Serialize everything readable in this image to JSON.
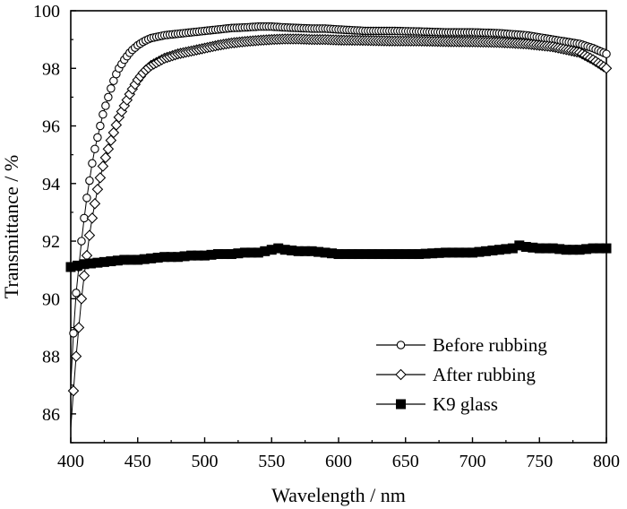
{
  "chart_data": {
    "type": "line",
    "title": "",
    "xlabel": "Wavelength / nm",
    "ylabel": "Transmittance / %",
    "xlim": [
      400,
      800
    ],
    "ylim": [
      85,
      100
    ],
    "xticks": [
      "400",
      "450",
      "500",
      "550",
      "600",
      "650",
      "700",
      "750",
      "800"
    ],
    "yticks": [
      "86",
      "88",
      "90",
      "92",
      "94",
      "96",
      "98",
      "100"
    ],
    "grid": false,
    "legend_position": "bottom-right",
    "series": [
      {
        "name": "Before rubbing",
        "marker": "circle",
        "x": [
          400,
          402,
          404,
          406,
          408,
          410,
          412,
          414,
          416,
          418,
          420,
          422,
          424,
          426,
          428,
          430,
          433,
          436,
          440,
          445,
          450,
          455,
          460,
          470,
          480,
          490,
          500,
          510,
          520,
          530,
          540,
          550,
          560,
          570,
          580,
          590,
          600,
          620,
          640,
          660,
          680,
          700,
          720,
          740,
          760,
          780,
          790,
          800
        ],
        "y": [
          87.0,
          88.8,
          90.2,
          91.1,
          92.0,
          92.8,
          93.5,
          94.1,
          94.7,
          95.2,
          95.6,
          96.0,
          96.4,
          96.7,
          97.0,
          97.3,
          97.7,
          98.0,
          98.3,
          98.6,
          98.8,
          98.95,
          99.05,
          99.15,
          99.2,
          99.25,
          99.3,
          99.35,
          99.4,
          99.42,
          99.45,
          99.45,
          99.42,
          99.4,
          99.38,
          99.38,
          99.35,
          99.3,
          99.3,
          99.28,
          99.25,
          99.25,
          99.22,
          99.15,
          99.0,
          98.85,
          98.7,
          98.5
        ]
      },
      {
        "name": "After rubbing",
        "marker": "diamond",
        "x": [
          400,
          402,
          404,
          406,
          408,
          410,
          412,
          414,
          416,
          418,
          420,
          422,
          424,
          426,
          428,
          430,
          433,
          436,
          440,
          445,
          450,
          455,
          460,
          470,
          480,
          490,
          500,
          510,
          520,
          530,
          540,
          550,
          560,
          570,
          580,
          590,
          600,
          620,
          640,
          660,
          680,
          700,
          720,
          740,
          760,
          780,
          790,
          800
        ],
        "y": [
          85.5,
          86.8,
          88.0,
          89.0,
          90.0,
          90.8,
          91.5,
          92.2,
          92.8,
          93.3,
          93.8,
          94.2,
          94.6,
          94.9,
          95.2,
          95.5,
          95.9,
          96.3,
          96.7,
          97.2,
          97.6,
          97.9,
          98.1,
          98.35,
          98.5,
          98.6,
          98.7,
          98.8,
          98.88,
          98.93,
          98.97,
          99.0,
          99.02,
          99.02,
          99.0,
          99.0,
          98.98,
          98.97,
          98.95,
          98.95,
          98.93,
          98.92,
          98.9,
          98.85,
          98.75,
          98.55,
          98.3,
          98.0
        ]
      },
      {
        "name": "K9 glass",
        "marker": "square",
        "x": [
          400,
          410,
          420,
          430,
          440,
          450,
          460,
          470,
          480,
          490,
          500,
          510,
          520,
          530,
          540,
          550,
          555,
          560,
          570,
          580,
          590,
          600,
          620,
          640,
          660,
          680,
          700,
          710,
          720,
          730,
          735,
          740,
          750,
          760,
          770,
          780,
          790,
          800
        ],
        "y": [
          91.1,
          91.2,
          91.25,
          91.3,
          91.35,
          91.35,
          91.4,
          91.45,
          91.45,
          91.5,
          91.5,
          91.55,
          91.55,
          91.6,
          91.6,
          91.7,
          91.75,
          91.7,
          91.65,
          91.65,
          91.6,
          91.55,
          91.55,
          91.55,
          91.55,
          91.6,
          91.6,
          91.65,
          91.7,
          91.75,
          91.85,
          91.8,
          91.75,
          91.75,
          91.7,
          91.7,
          91.75,
          91.75
        ]
      }
    ]
  }
}
